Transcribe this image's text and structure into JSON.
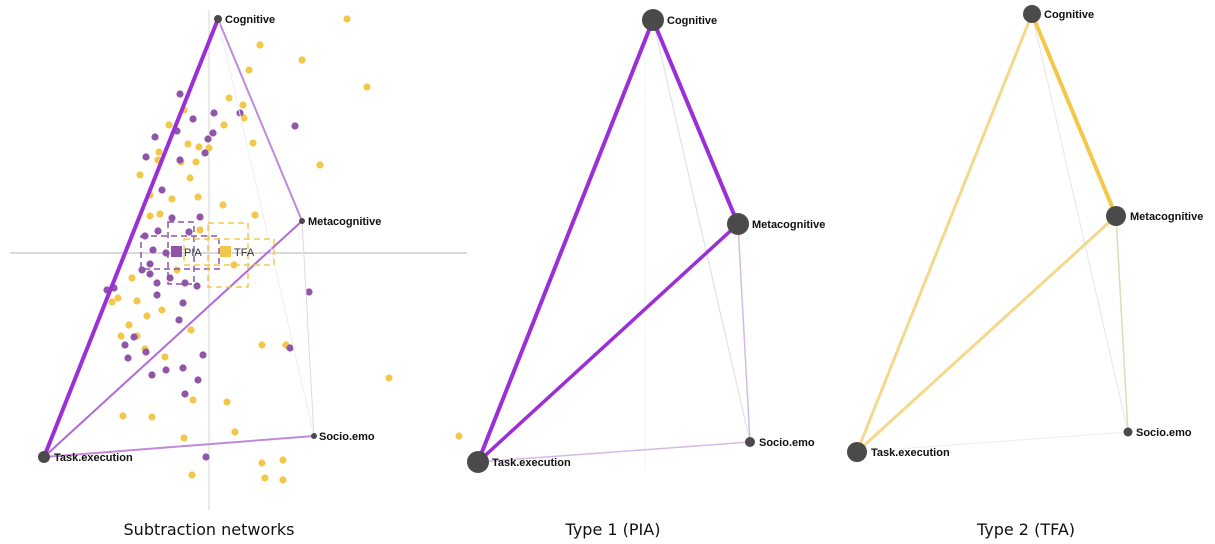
{
  "panels": [
    {
      "id": "subtraction",
      "caption": "Subtraction networks",
      "nodes": [
        {
          "id": "cog",
          "label": "Cognitive"
        },
        {
          "id": "meta",
          "label": "Metacognitive"
        },
        {
          "id": "socio",
          "label": "Socio.emo"
        },
        {
          "id": "task",
          "label": "Task.execution"
        }
      ],
      "group_labels": {
        "pia": "PIA",
        "tfa": "TFA"
      }
    },
    {
      "id": "type1",
      "caption": "Type 1 (PIA)",
      "nodes": [
        {
          "id": "cog",
          "label": "Cognitive"
        },
        {
          "id": "meta",
          "label": "Metacognitive"
        },
        {
          "id": "socio",
          "label": "Socio.emo"
        },
        {
          "id": "task",
          "label": "Task.execution"
        }
      ]
    },
    {
      "id": "type2",
      "caption": "Type 2 (TFA)",
      "nodes": [
        {
          "id": "cog",
          "label": "Cognitive"
        },
        {
          "id": "meta",
          "label": "Metacognitive"
        },
        {
          "id": "socio",
          "label": "Socio.emo"
        },
        {
          "id": "task",
          "label": "Task.execution"
        }
      ]
    }
  ],
  "colors": {
    "pia": "#9b2fd6",
    "pia_light": "#c08ad8",
    "pia_point": "#8e55a8",
    "tfa": "#f2c84b",
    "tfa_light": "#f4d98c",
    "node": "#4a4a4a",
    "axis": "#b3b3b3"
  }
}
